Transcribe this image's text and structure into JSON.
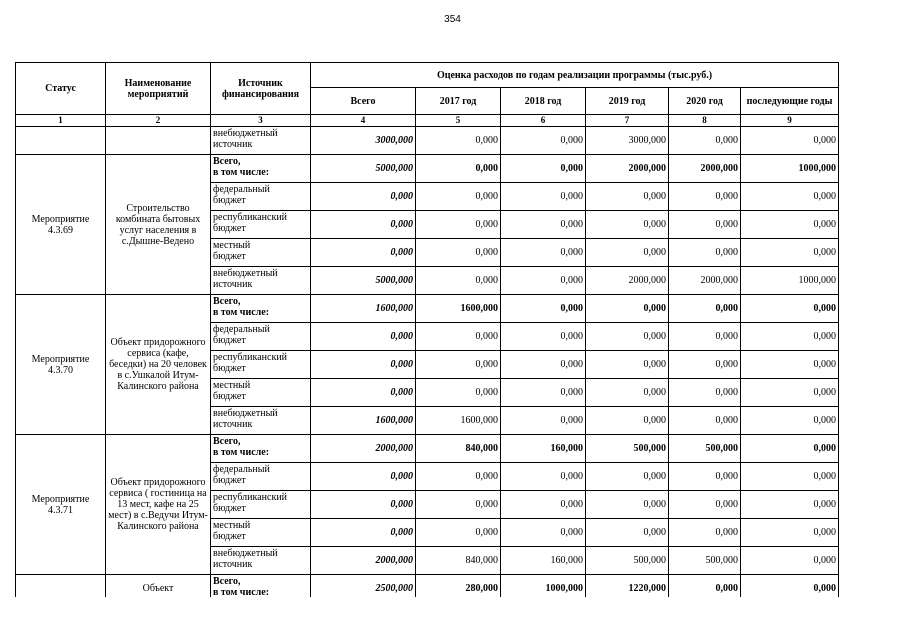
{
  "page_number": "354",
  "table": {
    "header": {
      "status": "Статус",
      "name": "Наименование мероприятий",
      "source": "Источник финансирования",
      "estimate": "Оценка расходов по годам реализации  программы (тыс.руб.)",
      "years": [
        "Всего",
        "2017 год",
        "2018 год",
        "2019 год",
        "2020 год",
        "последующие годы"
      ]
    },
    "column_numbers": [
      "1",
      "2",
      "3",
      "4",
      "5",
      "6",
      "7",
      "8",
      "9"
    ],
    "groups": [
      {
        "rows": [
          {
            "source": "внебюджетный\nисточник",
            "values": [
              "3000,000",
              "0,000",
              "0,000",
              "3000,000",
              "0,000",
              "0,000"
            ]
          }
        ]
      },
      {
        "status": "Мероприятие 4.3.69",
        "name": "Строительство комбината бытовых услуг населения в с.Дышне-Ведено",
        "rows": [
          {
            "source": "Всего,\nв том числе:",
            "bold": true,
            "values": [
              "5000,000",
              "0,000",
              "0,000",
              "2000,000",
              "2000,000",
              "1000,000"
            ]
          },
          {
            "source": "федеральный\nбюджет",
            "values": [
              "0,000",
              "0,000",
              "0,000",
              "0,000",
              "0,000",
              "0,000"
            ]
          },
          {
            "source": "республиканский\nбюджет",
            "values": [
              "0,000",
              "0,000",
              "0,000",
              "0,000",
              "0,000",
              "0,000"
            ]
          },
          {
            "source": "местный\nбюджет",
            "values": [
              "0,000",
              "0,000",
              "0,000",
              "0,000",
              "0,000",
              "0,000"
            ]
          },
          {
            "source": "внебюджетный\nисточник",
            "values": [
              "5000,000",
              "0,000",
              "0,000",
              "2000,000",
              "2000,000",
              "1000,000"
            ]
          }
        ]
      },
      {
        "status": "Мероприятие 4.3.70",
        "name": "Объект придорожного сервиса (кафе, беседки) на 20 человек в с.Ушкалой Итум-Калинского района",
        "rows": [
          {
            "source": "Всего,\nв том числе:",
            "bold": true,
            "values": [
              "1600,000",
              "1600,000",
              "0,000",
              "0,000",
              "0,000",
              "0,000"
            ]
          },
          {
            "source": "федеральный\nбюджет",
            "values": [
              "0,000",
              "0,000",
              "0,000",
              "0,000",
              "0,000",
              "0,000"
            ]
          },
          {
            "source": "республиканский\nбюджет",
            "values": [
              "0,000",
              "0,000",
              "0,000",
              "0,000",
              "0,000",
              "0,000"
            ]
          },
          {
            "source": "местный\nбюджет",
            "values": [
              "0,000",
              "0,000",
              "0,000",
              "0,000",
              "0,000",
              "0,000"
            ]
          },
          {
            "source": "внебюджетный\nисточник",
            "values": [
              "1600,000",
              "1600,000",
              "0,000",
              "0,000",
              "0,000",
              "0,000"
            ]
          }
        ]
      },
      {
        "status": "Мероприятие 4.3.71",
        "name": "Объект придорожного сервиса ( гостиница на 13 мест, кафе на 25 мест) в с.Ведучи Итум-Калинского района",
        "rows": [
          {
            "source": "Всего,\nв том числе:",
            "bold": true,
            "values": [
              "2000,000",
              "840,000",
              "160,000",
              "500,000",
              "500,000",
              "0,000"
            ]
          },
          {
            "source": "федеральный\nбюджет",
            "values": [
              "0,000",
              "0,000",
              "0,000",
              "0,000",
              "0,000",
              "0,000"
            ]
          },
          {
            "source": "республиканский\nбюджет",
            "values": [
              "0,000",
              "0,000",
              "0,000",
              "0,000",
              "0,000",
              "0,000"
            ]
          },
          {
            "source": "местный\nбюджет",
            "values": [
              "0,000",
              "0,000",
              "0,000",
              "0,000",
              "0,000",
              "0,000"
            ]
          },
          {
            "source": "внебюджетный\nисточник",
            "values": [
              "2000,000",
              "840,000",
              "160,000",
              "500,000",
              "500,000",
              "0,000"
            ]
          }
        ]
      },
      {
        "name": "Объект",
        "rows": [
          {
            "source": "Всего,\nв том числе:",
            "bold": true,
            "values": [
              "2500,000",
              "280,000",
              "1000,000",
              "1220,000",
              "0,000",
              "0,000"
            ]
          }
        ]
      }
    ]
  }
}
